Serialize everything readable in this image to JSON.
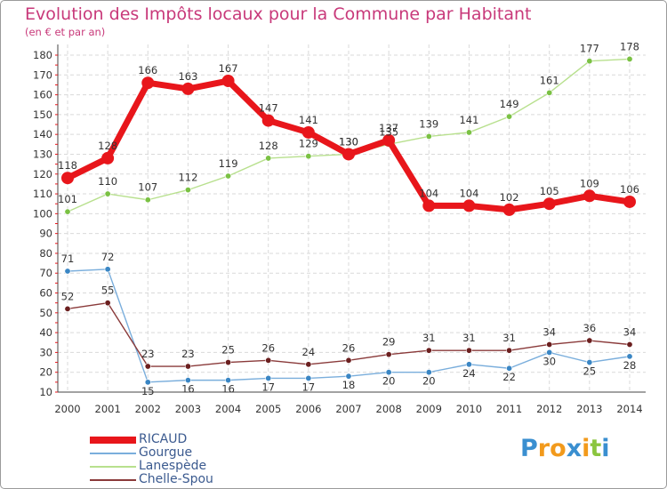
{
  "title": "Evolution des Impôts locaux pour la Commune par Habitant",
  "subtitle": "(en € et par an)",
  "brand": {
    "letters": [
      "P",
      "r",
      "o",
      "x",
      "i",
      "t",
      "i"
    ],
    "colors": [
      "#3a8fd0",
      "#f29a1c",
      "#f29a1c",
      "#3a8fd0",
      "#f29a1c",
      "#8bc53f",
      "#3a8fd0"
    ]
  },
  "chart_data": {
    "type": "line",
    "x": [
      "2000",
      "2001",
      "2002",
      "2003",
      "2004",
      "2005",
      "2006",
      "2007",
      "2008",
      "2009",
      "2010",
      "2011",
      "2012",
      "2013",
      "2014"
    ],
    "ylim": [
      10,
      180
    ],
    "yticks": [
      "10",
      "20",
      "30",
      "40",
      "50",
      "60",
      "70",
      "80",
      "90",
      "100",
      "110",
      "120",
      "130",
      "140",
      "150",
      "160",
      "170",
      "180"
    ],
    "grid": true,
    "legend_position": "bottom-left",
    "series": [
      {
        "name": "RICAUD",
        "color": "#e8161b",
        "point_color": "#e8161b",
        "width": 7,
        "marker": 7,
        "values": [
          118,
          128,
          166,
          163,
          167,
          147,
          141,
          130,
          137,
          104,
          104,
          102,
          105,
          109,
          106
        ],
        "labels": [
          "118",
          "128",
          "166",
          "163",
          "167",
          "147",
          "141",
          "130",
          "137",
          "104",
          "104",
          "102",
          "105",
          "109",
          "106"
        ]
      },
      {
        "name": "Gourgue",
        "color": "#7aaedc",
        "point_color": "#3a86c4",
        "width": 1.4,
        "marker": 3.2,
        "values": [
          71,
          72,
          15,
          16,
          16,
          17,
          17,
          18,
          20,
          20,
          24,
          22,
          30,
          25,
          28
        ],
        "labels": [
          "71",
          "72",
          "15",
          "16",
          "16",
          "17",
          "17",
          "18",
          "20",
          "20",
          "24",
          "22",
          "30",
          "25",
          "28"
        ]
      },
      {
        "name": "Lanespède",
        "color": "#b8e08e",
        "point_color": "#7ac143",
        "width": 1.4,
        "marker": 3.2,
        "values": [
          101,
          110,
          107,
          112,
          119,
          128,
          129,
          130,
          135,
          139,
          141,
          149,
          161,
          177,
          178
        ],
        "labels": [
          "101",
          "110",
          "107",
          "112",
          "119",
          "128",
          "129",
          "130",
          "135",
          "139",
          "141",
          "149",
          "161",
          "177",
          "178"
        ]
      },
      {
        "name": "Chelle-Spou",
        "color": "#8a3a3a",
        "point_color": "#6b1f1f",
        "width": 1.4,
        "marker": 3.2,
        "values": [
          52,
          55,
          23,
          23,
          25,
          26,
          24,
          26,
          29,
          31,
          31,
          31,
          34,
          36,
          34
        ],
        "labels": [
          "52",
          "55",
          "23",
          "23",
          "25",
          "26",
          "24",
          "26",
          "29",
          "31",
          "31",
          "31",
          "34",
          "36",
          "34"
        ]
      }
    ]
  }
}
